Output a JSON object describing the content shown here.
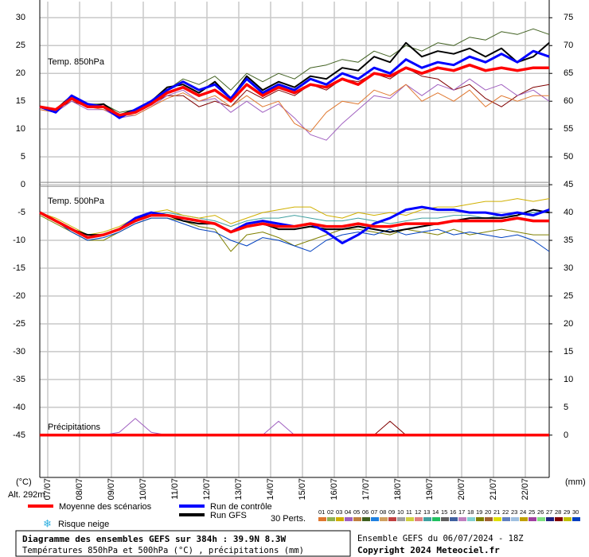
{
  "chart_data": {
    "type": "line",
    "title": "Diagramme des ensembles GEFS sur 384h : 39.9N 8.3W",
    "subtitle": "Températures 850hPa et 500hPa (°C) , précipitations (mm)",
    "run": "Ensemble GEFS du 06/07/2024 - 18Z",
    "copyright": "Copyright 2024 Meteociel.fr",
    "altitude": "Alt. 292m",
    "ylabel": "(°C)",
    "y2label": "(mm)",
    "annotations": [
      "Temp. 850hPa",
      "Temp. 500hPa",
      "Précipitations"
    ],
    "snow_risk": "Risque neige",
    "perturbations_label": "30 Perts.",
    "members": [
      "01",
      "02",
      "03",
      "04",
      "05",
      "06",
      "07",
      "08",
      "09",
      "10",
      "11",
      "12",
      "13",
      "14",
      "15",
      "16",
      "17",
      "18",
      "19",
      "20",
      "21",
      "22",
      "23",
      "24",
      "25",
      "26",
      "27",
      "28",
      "29",
      "30"
    ],
    "member_colors": [
      "#e07830",
      "#90b050",
      "#d0b000",
      "#a060c0",
      "#c08040",
      "#406020",
      "#2080e0",
      "#d0a060",
      "#c04040",
      "#a0a0a0",
      "#d0d040",
      "#e08080",
      "#40a0a0",
      "#20c060",
      "#606060",
      "#4060a0",
      "#c080c0",
      "#80d0d0",
      "#808000",
      "#a06030",
      "#e0e000",
      "#6080c0",
      "#a0c0e0",
      "#c0a000",
      "#a040a0",
      "#80e080",
      "#202080",
      "#800000",
      "#c0c000",
      "#0040c0"
    ],
    "grid": true,
    "x": [
      0,
      12,
      24,
      36,
      48,
      60,
      72,
      84,
      96,
      108,
      120,
      132,
      144,
      156,
      168,
      180,
      192,
      204,
      216,
      228,
      240,
      252,
      264,
      276,
      288,
      300,
      312,
      324,
      336,
      348,
      360,
      372,
      384
    ],
    "xlim": [
      0,
      384
    ],
    "xticks": [
      {
        "value": 6,
        "label": "07/07"
      },
      {
        "value": 30,
        "label": "08/07"
      },
      {
        "value": 54,
        "label": "09/07"
      },
      {
        "value": 78,
        "label": "10/07"
      },
      {
        "value": 102,
        "label": "11/07"
      },
      {
        "value": 126,
        "label": "12/07"
      },
      {
        "value": 150,
        "label": "13/07"
      },
      {
        "value": 174,
        "label": "14/07"
      },
      {
        "value": 198,
        "label": "15/07"
      },
      {
        "value": 222,
        "label": "16/07"
      },
      {
        "value": 246,
        "label": "17/07"
      },
      {
        "value": 270,
        "label": "18/07"
      },
      {
        "value": 294,
        "label": "19/07"
      },
      {
        "value": 318,
        "label": "20/07"
      },
      {
        "value": 342,
        "label": "21/07"
      },
      {
        "value": 366,
        "label": "22/07"
      }
    ],
    "ylim": [
      -52.6,
      32.9
    ],
    "yticks": [
      30,
      25,
      20,
      15,
      10,
      5,
      0,
      -5,
      -10,
      -15,
      -20,
      -25,
      -30,
      -35,
      -40,
      -45
    ],
    "y2lim": [
      -7.6,
      77.9
    ],
    "y2ticks": [
      75,
      70,
      65,
      60,
      55,
      50,
      45,
      40,
      35,
      30,
      25,
      20,
      15,
      10,
      5,
      0
    ],
    "series": [
      {
        "name": "Moyenne des scénarios",
        "color": "#ff0000",
        "line_width": 3.5,
        "values": [
          14,
          13.5,
          15.5,
          14,
          14,
          12.5,
          13,
          14.5,
          16.5,
          17.5,
          16,
          17,
          15,
          18,
          16,
          17.5,
          16.5,
          18,
          17.5,
          19,
          18,
          20,
          19.5,
          21,
          20,
          21,
          20.5,
          21.5,
          20.5,
          21,
          20.5,
          21,
          21
        ]
      },
      {
        "name": "Run de contrôle",
        "color": "#0000ff",
        "line_width": 3,
        "values": [
          14,
          13,
          16,
          14.5,
          14,
          12,
          13.5,
          15,
          17,
          18.5,
          17,
          18,
          15.5,
          19,
          16.5,
          18,
          17,
          19,
          18,
          20,
          19,
          21,
          20,
          22.5,
          21,
          22,
          21.5,
          23,
          22,
          23.5,
          22,
          24,
          23
        ]
      },
      {
        "name": "Run GFS",
        "color": "#000000",
        "line_width": 2,
        "values": [
          14,
          13.5,
          16,
          14,
          14.5,
          12.5,
          13.5,
          15,
          17.5,
          18,
          16.5,
          18.5,
          15.5,
          19.5,
          17,
          18.5,
          17.5,
          19.5,
          19,
          21,
          20.5,
          23,
          22,
          25.5,
          23,
          24,
          23.5,
          24.5,
          23,
          24.5,
          22,
          23,
          25.5
        ]
      },
      {
        "color": "#e07830",
        "line_width": 1,
        "values": [
          13.5,
          13,
          15.5,
          14,
          13.5,
          12.5,
          12.5,
          14,
          15.5,
          16.5,
          15,
          16,
          14,
          16,
          14,
          15,
          11,
          9.5,
          13,
          15,
          14.5,
          17,
          16,
          18,
          15,
          16.5,
          15,
          17,
          14,
          16,
          15,
          16,
          16
        ]
      },
      {
        "color": "#406020",
        "line_width": 1,
        "values": [
          14,
          13.5,
          16,
          14.5,
          14.5,
          13,
          13.5,
          15,
          17,
          19,
          18,
          19.5,
          17,
          20,
          18.5,
          20,
          19,
          21,
          21.5,
          22.5,
          22,
          24,
          23,
          25,
          24,
          25.5,
          25,
          26.5,
          26,
          27.5,
          27,
          28,
          27
        ]
      },
      {
        "color": "#a060c0",
        "line_width": 1,
        "values": [
          13.5,
          13,
          15,
          13.5,
          13.5,
          12,
          12.5,
          14,
          16,
          17,
          15,
          15.5,
          13,
          15,
          13,
          14.5,
          12,
          9,
          8,
          11,
          13.5,
          16,
          15.5,
          18,
          16,
          18,
          17,
          19,
          17,
          18,
          16,
          17,
          15
        ]
      },
      {
        "color": "#800000",
        "line_width": 1,
        "values": [
          14,
          13.5,
          15,
          14,
          14,
          12.5,
          13,
          14.5,
          16,
          16,
          14,
          15,
          14,
          17,
          15.5,
          17,
          16,
          18,
          17,
          19,
          18.5,
          20,
          19,
          21,
          19.5,
          19,
          17,
          18,
          15.5,
          14,
          16,
          17.5,
          18
        ]
      },
      {
        "color": "#ff0000",
        "line_width": 3.5,
        "values": [
          -5,
          -6.5,
          -8,
          -9.5,
          -9,
          -8,
          -6.5,
          -5.5,
          -5.5,
          -6,
          -6.5,
          -7,
          -8.5,
          -7.5,
          -7,
          -7.5,
          -7.5,
          -7,
          -7.5,
          -7.5,
          -7,
          -7.5,
          -7.5,
          -7,
          -7,
          -7,
          -6.5,
          -6.5,
          -6.5,
          -6.5,
          -6,
          -6.5,
          -6.5
        ]
      },
      {
        "color": "#0000ff",
        "line_width": 3,
        "values": [
          -5,
          -6.5,
          -8,
          -9.5,
          -9,
          -8,
          -6,
          -5,
          -5.5,
          -6,
          -6.5,
          -7,
          -8.5,
          -7,
          -6.5,
          -7,
          -7.5,
          -7,
          -8.5,
          -10.5,
          -9,
          -7,
          -6,
          -4.5,
          -4,
          -4.5,
          -4.5,
          -5,
          -5,
          -5.5,
          -5,
          -5.5,
          -4.5
        ]
      },
      {
        "color": "#000000",
        "line_width": 2,
        "values": [
          -5,
          -6.5,
          -8,
          -9,
          -9,
          -8,
          -6,
          -5.5,
          -5.5,
          -6.5,
          -7,
          -7,
          -8.5,
          -7.5,
          -7,
          -8,
          -8,
          -7.5,
          -8,
          -8,
          -7.5,
          -8,
          -8.5,
          -8,
          -7.5,
          -7,
          -6.5,
          -6,
          -6,
          -6,
          -5.5,
          -4.5,
          -5
        ]
      },
      {
        "color": "#0040c0",
        "line_width": 1,
        "values": [
          -5,
          -6.5,
          -8.5,
          -10,
          -9.5,
          -8.5,
          -7,
          -6,
          -6,
          -7,
          -8,
          -8.5,
          -10,
          -11,
          -9.5,
          -10,
          -11,
          -12,
          -10,
          -9,
          -8.5,
          -9,
          -8,
          -9,
          -8.5,
          -8,
          -9,
          -8.5,
          -9,
          -9.5,
          -9,
          -10,
          -12
        ]
      },
      {
        "color": "#d0b000",
        "line_width": 1,
        "values": [
          -5,
          -6,
          -7.5,
          -9,
          -8.5,
          -7.5,
          -6,
          -5,
          -4.5,
          -5.5,
          -6,
          -5.5,
          -7,
          -6,
          -5,
          -4.5,
          -4,
          -4,
          -5.5,
          -6,
          -5,
          -5.5,
          -5,
          -5.5,
          -4.5,
          -4,
          -4,
          -3.5,
          -3,
          -3,
          -2.5,
          -3,
          -2.5
        ]
      },
      {
        "color": "#808000",
        "line_width": 1,
        "values": [
          -5.5,
          -7,
          -8.5,
          -10,
          -10,
          -8.5,
          -7,
          -6,
          -6,
          -6.5,
          -7.5,
          -8,
          -12,
          -9,
          -8.5,
          -9.5,
          -11,
          -10,
          -9,
          -8,
          -8,
          -8.5,
          -9,
          -8,
          -8.5,
          -9,
          -8,
          -9,
          -8.5,
          -8,
          -8.5,
          -9,
          -9
        ]
      },
      {
        "color": "#40a0a0",
        "line_width": 1,
        "values": [
          -5,
          -6.5,
          -8,
          -9.5,
          -9,
          -8,
          -6.5,
          -5.5,
          -5,
          -5.5,
          -6,
          -6.5,
          -7.5,
          -6.5,
          -6,
          -6,
          -5.5,
          -6,
          -6.5,
          -6.5,
          -6,
          -6.5,
          -7,
          -6.5,
          -6,
          -6,
          -5.5,
          -5.5,
          -6,
          -5.5,
          -5.5,
          -5,
          -5
        ]
      },
      {
        "color": "#ff0000",
        "line_width": 3.5,
        "axis": "y2",
        "values": [
          0,
          0,
          0,
          0,
          0,
          0,
          0,
          0,
          0,
          0,
          0,
          0,
          0,
          0,
          0,
          0,
          0,
          0,
          0,
          0,
          0,
          0,
          0,
          0,
          0,
          0,
          0,
          0,
          0,
          0,
          0,
          0,
          0
        ]
      },
      {
        "color": "#0000ff",
        "line_width": 2,
        "axis": "y2",
        "values": [
          0,
          0,
          0,
          0,
          0,
          0,
          0,
          0,
          0,
          0,
          0,
          0,
          0,
          0,
          0,
          0,
          0,
          0,
          0,
          0,
          0,
          0,
          0,
          0,
          0,
          0,
          0,
          0,
          0,
          0,
          0,
          0,
          0
        ]
      },
      {
        "color": "#000000",
        "line_width": 1.5,
        "axis": "y2",
        "values": [
          0,
          0,
          0,
          0,
          0,
          0,
          0,
          0,
          0,
          0,
          0,
          0,
          0,
          0,
          0,
          0,
          0,
          0,
          0,
          0,
          0,
          0,
          0,
          0,
          0,
          0,
          0,
          0,
          0,
          0,
          0,
          0,
          0
        ]
      },
      {
        "color": "#a060c0",
        "line_width": 1,
        "axis": "y2",
        "values": [
          0,
          0,
          0,
          0,
          0,
          0.5,
          3,
          0.5,
          0,
          0,
          0,
          0,
          0,
          0,
          0,
          0,
          0,
          0,
          0,
          0,
          0,
          0,
          0,
          0,
          0,
          0,
          0,
          0,
          0,
          0,
          0,
          0,
          0
        ]
      },
      {
        "color": "#a060c0",
        "line_width": 1,
        "axis": "y2",
        "values": [
          0,
          0,
          0,
          0,
          0,
          0,
          0,
          0,
          0,
          0,
          0,
          0,
          0,
          0,
          0,
          2.5,
          0,
          0,
          0,
          0,
          0,
          0,
          0,
          0,
          0,
          0,
          0,
          0,
          0,
          0,
          0,
          0,
          0
        ]
      },
      {
        "color": "#800000",
        "line_width": 1,
        "axis": "y2",
        "values": [
          0,
          0,
          0,
          0,
          0,
          0,
          0,
          0,
          0,
          0,
          0,
          0,
          0,
          0,
          0,
          0,
          0,
          0,
          0,
          0,
          0,
          0,
          2.5,
          0,
          0,
          0,
          0,
          0,
          0,
          0,
          0,
          0,
          0
        ]
      }
    ]
  }
}
